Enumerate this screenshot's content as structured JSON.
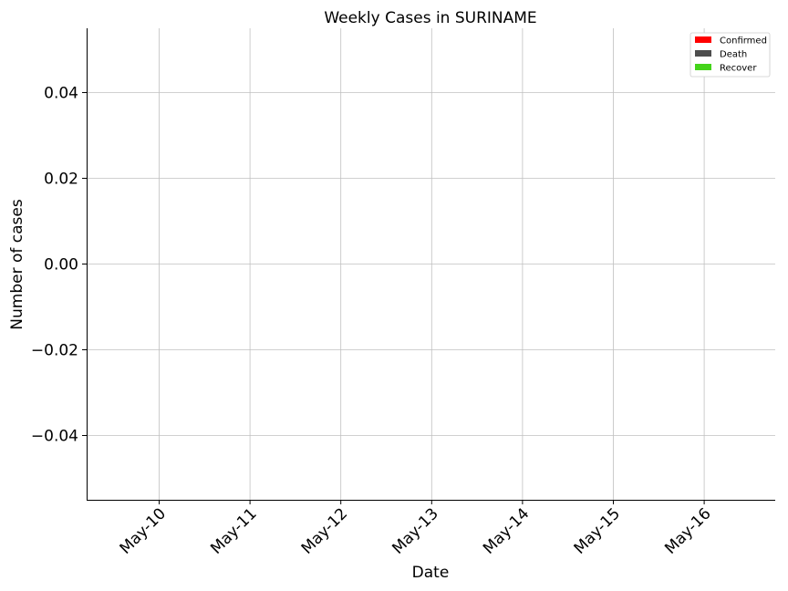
{
  "chart_data": {
    "type": "bar",
    "title": "Weekly Cases in SURINAME",
    "xlabel": "Date",
    "ylabel": "Number of cases",
    "categories": [
      "May-10",
      "May-11",
      "May-12",
      "May-13",
      "May-14",
      "May-15",
      "May-16"
    ],
    "series": [
      {
        "name": "Confirmed",
        "color": "#ff0000",
        "values": [
          0,
          0,
          0,
          0,
          0,
          0,
          0
        ]
      },
      {
        "name": "Death",
        "color": "#4d4d4d",
        "values": [
          0,
          0,
          0,
          0,
          0,
          0,
          0
        ]
      },
      {
        "name": "Recover",
        "color": "#44d41a",
        "values": [
          0,
          0,
          0,
          0,
          0,
          0,
          0
        ]
      }
    ],
    "ylim": [
      -0.055,
      0.055
    ],
    "yticks": [
      -0.04,
      -0.02,
      0.0,
      0.02,
      0.04
    ],
    "ytick_labels": [
      "−0.04",
      "−0.02",
      "0.00",
      "0.02",
      "0.04"
    ],
    "grid": true,
    "legend": "top-right"
  }
}
